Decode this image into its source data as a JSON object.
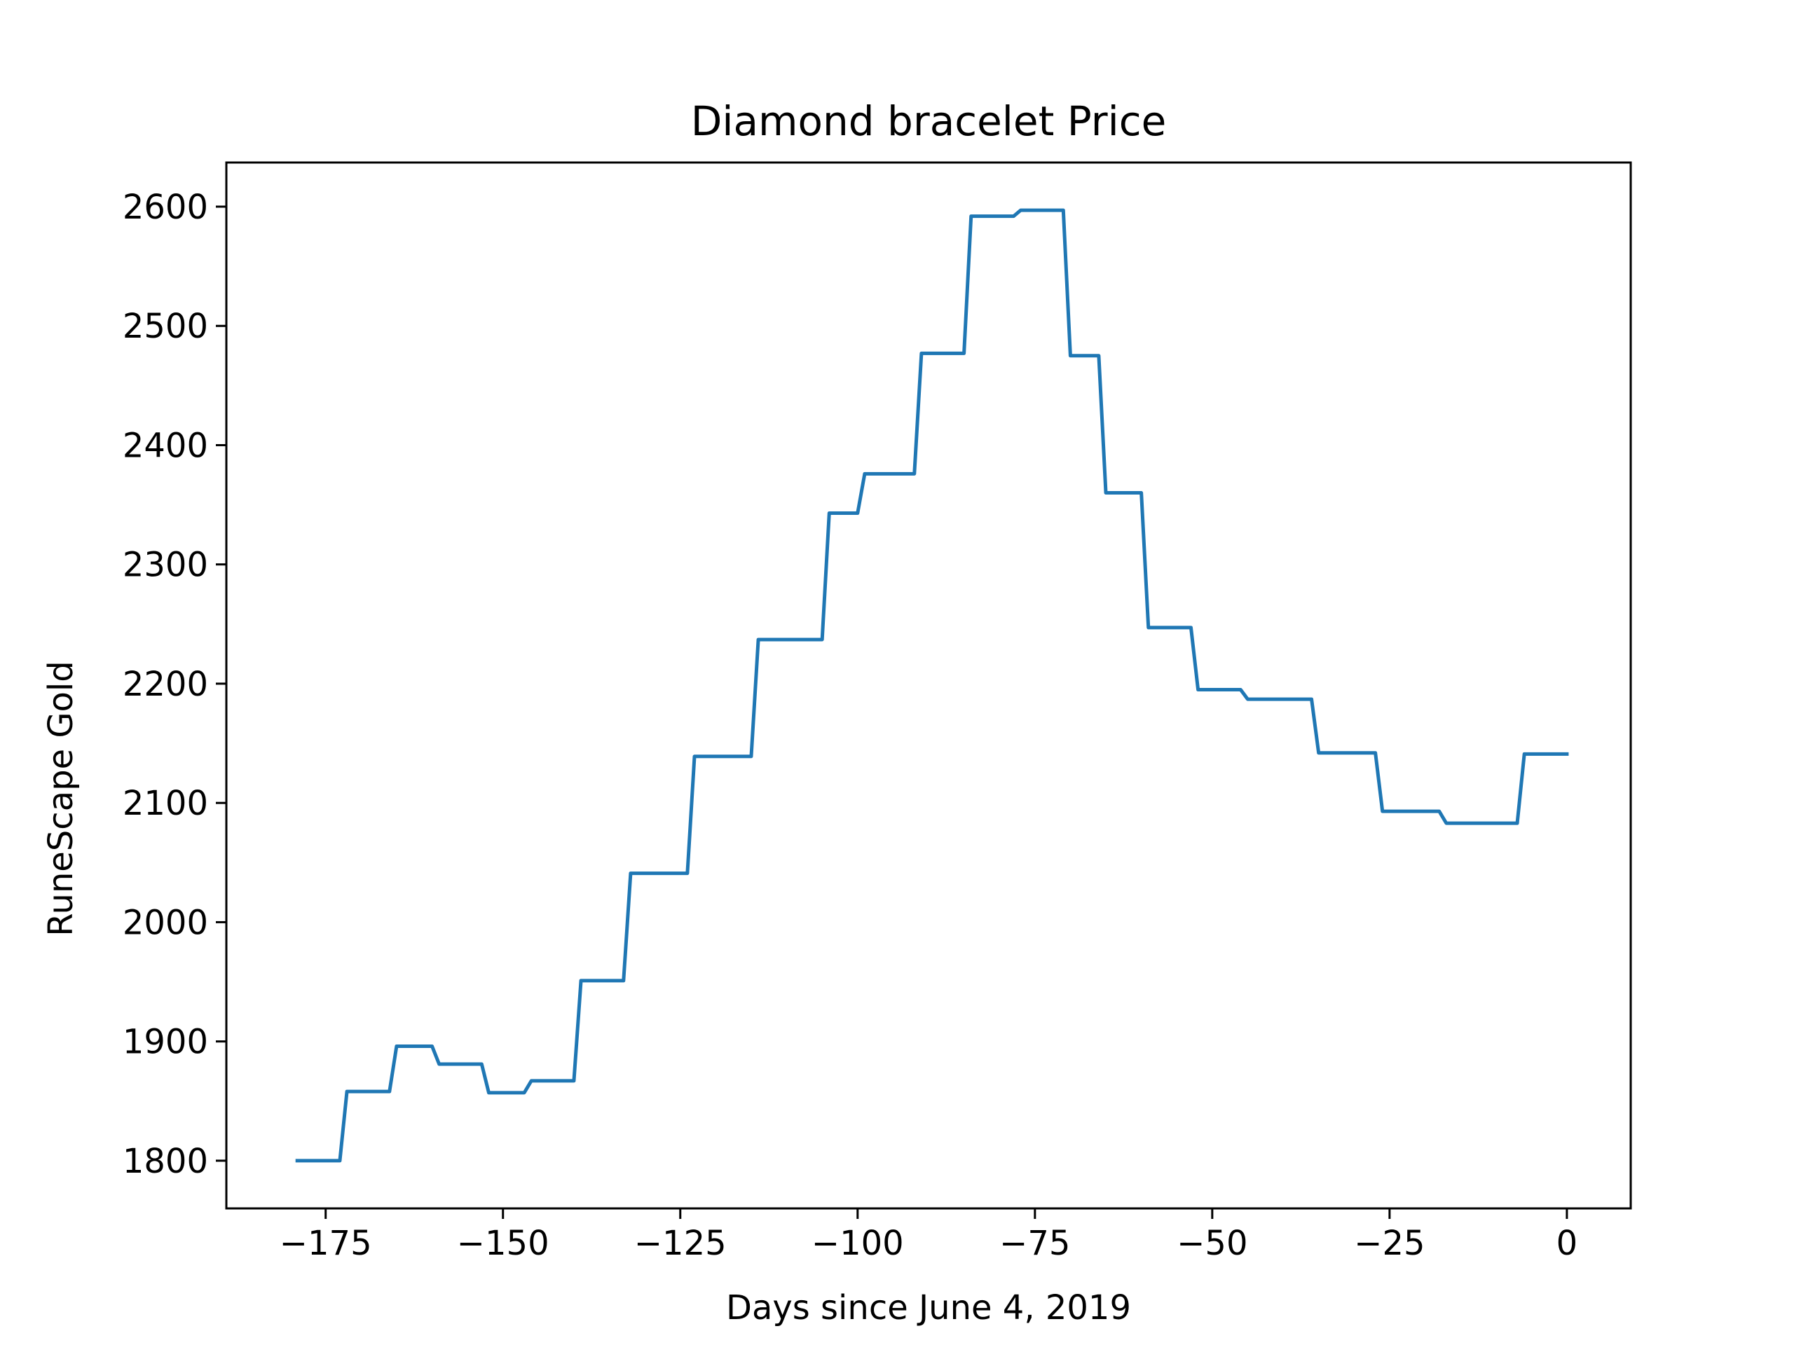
{
  "chart_data": {
    "type": "line",
    "title": "Diamond bracelet Price",
    "xlabel": "Days since June 4, 2019",
    "ylabel": "RuneScape Gold",
    "xlim": [
      -189,
      9
    ],
    "ylim": [
      1760,
      2637
    ],
    "xticks": [
      -175,
      -150,
      -125,
      -100,
      -75,
      -50,
      -25,
      0
    ],
    "xtick_labels": [
      "−175",
      "−150",
      "−125",
      "−100",
      "−75",
      "−50",
      "−25",
      "0"
    ],
    "yticks": [
      1800,
      1900,
      2000,
      2100,
      2200,
      2300,
      2400,
      2500,
      2600
    ],
    "ytick_labels": [
      "1800",
      "1900",
      "2000",
      "2100",
      "2200",
      "2300",
      "2400",
      "2500",
      "2600"
    ],
    "grid": false,
    "series": [
      {
        "color": "#1f77b4",
        "x": [
          -179,
          -173,
          -172,
          -166,
          -165,
          -160,
          -159,
          -153,
          -152,
          -147,
          -146,
          -140,
          -139,
          -133,
          -132,
          -124,
          -123,
          -115,
          -114,
          -105,
          -104,
          -100,
          -99,
          -92,
          -91,
          -85,
          -84,
          -78,
          -77,
          -71,
          -70,
          -66,
          -65,
          -60,
          -59,
          -53,
          -52,
          -46,
          -45,
          -36,
          -35,
          -27,
          -26,
          -18,
          -17,
          -7,
          -6,
          0
        ],
        "y": [
          1800,
          1800,
          1858,
          1858,
          1896,
          1896,
          1881,
          1881,
          1857,
          1857,
          1867,
          1867,
          1951,
          1951,
          2041,
          2041,
          2139,
          2139,
          2237,
          2237,
          2343,
          2343,
          2376,
          2376,
          2477,
          2477,
          2592,
          2592,
          2597,
          2597,
          2475,
          2475,
          2360,
          2360,
          2247,
          2247,
          2195,
          2195,
          2187,
          2187,
          2142,
          2142,
          2093,
          2093,
          2083,
          2083,
          2141,
          2141
        ]
      }
    ]
  }
}
